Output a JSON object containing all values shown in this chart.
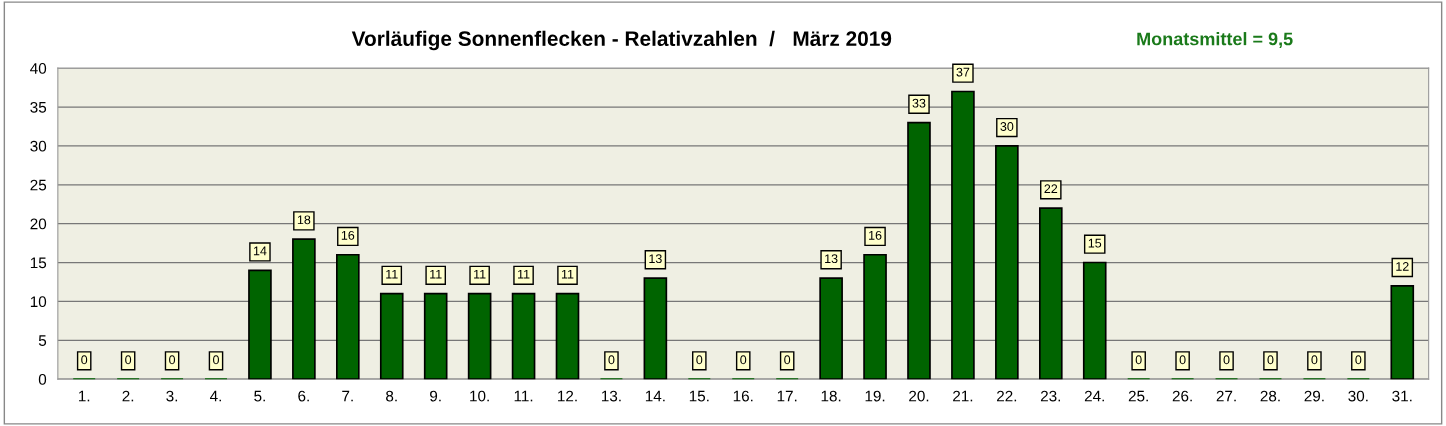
{
  "chart_data": {
    "type": "bar",
    "title": "Vorläufige Sonnenflecken - Relativzahlen  /   März 2019",
    "annotations": [
      "Monatsmittel = 9,5"
    ],
    "categories": [
      "1.",
      "2.",
      "3.",
      "4.",
      "5.",
      "6.",
      "7.",
      "8.",
      "9.",
      "10.",
      "11.",
      "12.",
      "13.",
      "14.",
      "15.",
      "16.",
      "17.",
      "18.",
      "19.",
      "20.",
      "21.",
      "22.",
      "23.",
      "24.",
      "25.",
      "26.",
      "27.",
      "28.",
      "29.",
      "30.",
      "31."
    ],
    "values": [
      0,
      0,
      0,
      0,
      14,
      18,
      16,
      11,
      11,
      11,
      11,
      11,
      0,
      13,
      0,
      0,
      0,
      13,
      16,
      33,
      37,
      30,
      22,
      15,
      0,
      0,
      0,
      0,
      0,
      0,
      12
    ],
    "color": "#006400",
    "ylim": [
      0,
      40
    ],
    "yticks": [
      0,
      5,
      10,
      15,
      20,
      25,
      30,
      35,
      40
    ],
    "grid": "y",
    "data_labels": true
  }
}
